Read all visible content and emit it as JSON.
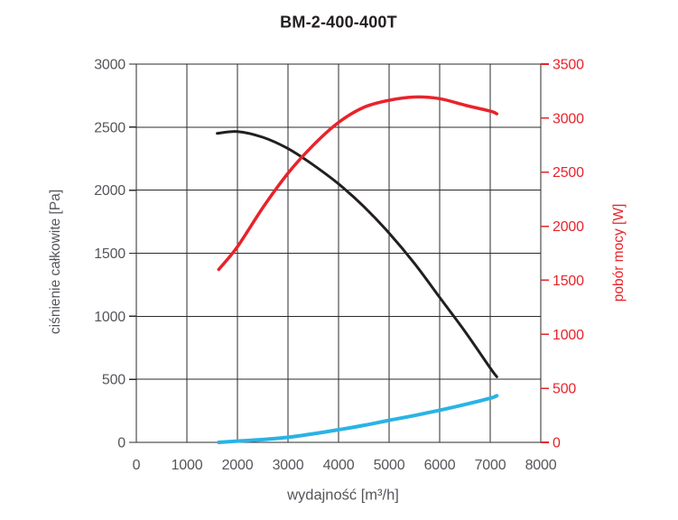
{
  "title": "BM-2-400-400T",
  "colors": {
    "pressure_curve": "#231f20",
    "power_curve": "#e8232b",
    "aux_curve": "#2ab3e6",
    "grid": "#2b2b2b",
    "tick_text": "#54565b",
    "right_tick_text": "#e8232b",
    "background": "#ffffff"
  },
  "chart_data": {
    "type": "line",
    "title": "BM-2-400-400T",
    "xlabel": "wydajność [m³/h]",
    "ylabel_left": "ciśnienie całkowite [Pa]",
    "ylabel_right": "pobór mocy [W]",
    "xlim": [
      0,
      8000
    ],
    "ylim_left": [
      0,
      3000
    ],
    "ylim_right": [
      0,
      3500
    ],
    "x_ticks": [
      0,
      1000,
      2000,
      3000,
      4000,
      5000,
      6000,
      7000,
      8000
    ],
    "y_left_ticks": [
      0,
      500,
      1000,
      1500,
      2000,
      2500,
      3000
    ],
    "y_right_ticks": [
      0,
      500,
      1000,
      1500,
      2000,
      2500,
      3000,
      3500
    ],
    "grid": true,
    "legend": "none",
    "series": [
      {
        "name": "cisnienie-calkowite",
        "axis": "left",
        "color": "#231f20",
        "width": 3,
        "x": [
          1600,
          2000,
          2500,
          3000,
          3500,
          4000,
          4500,
          5000,
          5500,
          6000,
          6500,
          7000,
          7130
        ],
        "y": [
          2450,
          2465,
          2420,
          2330,
          2200,
          2050,
          1870,
          1660,
          1420,
          1150,
          880,
          590,
          520
        ]
      },
      {
        "name": "pobor-mocy",
        "axis": "right",
        "color": "#e8232b",
        "width": 3.5,
        "x": [
          1630,
          2000,
          2500,
          3000,
          3500,
          4000,
          4500,
          5000,
          5500,
          6000,
          6500,
          7000,
          7130
        ],
        "y": [
          1600,
          1810,
          2170,
          2490,
          2750,
          2960,
          3100,
          3165,
          3195,
          3180,
          3120,
          3065,
          3040
        ]
      },
      {
        "name": "aux-cyan",
        "axis": "left",
        "color": "#2ab3e6",
        "width": 4,
        "x": [
          1630,
          2000,
          2500,
          3000,
          3500,
          4000,
          4500,
          5000,
          5500,
          6000,
          6500,
          7000,
          7130
        ],
        "y": [
          0,
          10,
          22,
          40,
          68,
          100,
          135,
          175,
          213,
          255,
          300,
          350,
          370
        ]
      }
    ]
  }
}
